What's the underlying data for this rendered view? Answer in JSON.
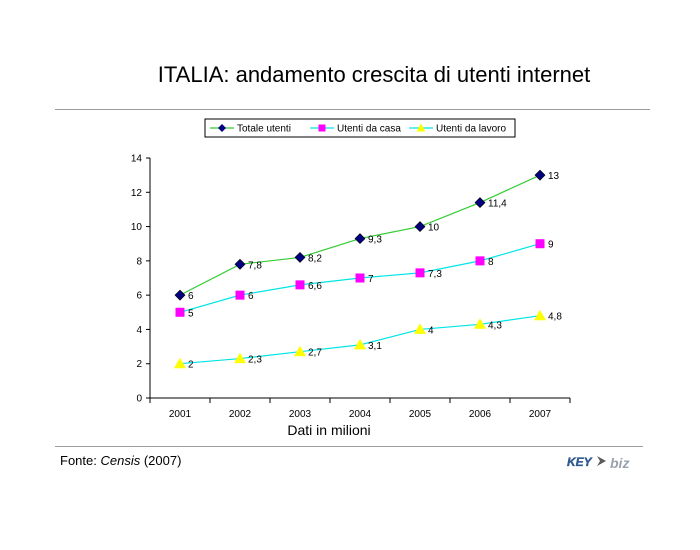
{
  "title": "ITALIA: andamento crescita di utenti internet",
  "footer": {
    "prefix": "Fonte: ",
    "source": "Censis",
    "suffix": " (2007)"
  },
  "logo": {
    "left": "KEY",
    "right": "biz",
    "colors": {
      "key": "#2d5d9a",
      "biz": "#9aa3ad",
      "arrow": "#5b5b5b"
    }
  },
  "chart_data": {
    "type": "line",
    "categories": [
      "2001",
      "2002",
      "2003",
      "2004",
      "2005",
      "2006",
      "2007"
    ],
    "xlabel": "Dati in milioni",
    "ylabel": "",
    "ylim": [
      0,
      14
    ],
    "yticks": [
      0,
      2,
      4,
      6,
      8,
      10,
      12,
      14
    ],
    "grid": false,
    "legend": "top",
    "series": [
      {
        "name": "Totale utenti",
        "values": [
          6,
          7.8,
          8.2,
          9.3,
          10,
          11.4,
          13
        ],
        "labels": [
          "6",
          "7,8",
          "8,2",
          "9,3",
          "10",
          "11,4",
          "13"
        ],
        "line_color": "#33cc33",
        "marker_color": "#000080",
        "marker": "diamond"
      },
      {
        "name": "Utenti da casa",
        "values": [
          5,
          6,
          6.6,
          7,
          7.3,
          8,
          9
        ],
        "labels": [
          "5",
          "6",
          "6,6",
          "7",
          "7,3",
          "8",
          "9"
        ],
        "line_color": "#00e5e5",
        "marker_color": "#ff00ff",
        "marker": "square"
      },
      {
        "name": "Utenti da lavoro",
        "values": [
          2,
          2.3,
          2.7,
          3.1,
          4,
          4.3,
          4.8
        ],
        "labels": [
          "2",
          "2,3",
          "2,7",
          "3,1",
          "4",
          "4,3",
          "4,8"
        ],
        "line_color": "#00e5e5",
        "marker_color": "#ffff00",
        "marker": "triangle"
      }
    ]
  }
}
